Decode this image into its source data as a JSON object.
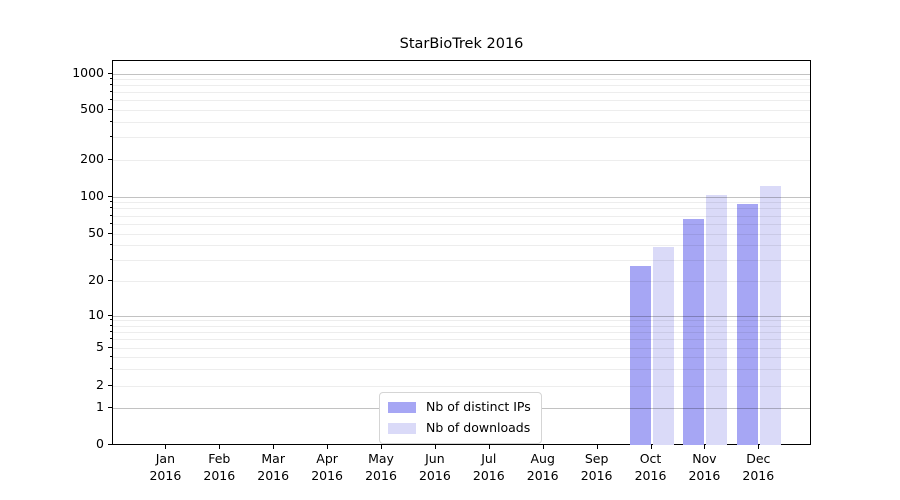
{
  "title": "StarBioTrek 2016",
  "chart_data": {
    "type": "bar",
    "title": "StarBioTrek 2016",
    "categories": [
      "Jan 2016",
      "Feb 2016",
      "Mar 2016",
      "Apr 2016",
      "May 2016",
      "Jun 2016",
      "Jul 2016",
      "Aug 2016",
      "Sep 2016",
      "Oct 2016",
      "Nov 2016",
      "Dec 2016"
    ],
    "series": [
      {
        "name": "Nb of distinct IPs",
        "color": "#a6a6f4",
        "values": [
          0,
          0,
          0,
          0,
          0,
          0,
          0,
          0,
          0,
          27,
          66,
          88
        ]
      },
      {
        "name": "Nb of downloads",
        "color": "#dadaf8",
        "values": [
          0,
          0,
          0,
          0,
          0,
          0,
          0,
          0,
          0,
          39,
          104,
          122
        ]
      }
    ],
    "xlabel": "",
    "ylabel": "",
    "yscale": "symlog",
    "ylim": [
      0,
      1300
    ],
    "y_ticks": [
      0,
      1,
      2,
      5,
      10,
      20,
      50,
      100,
      200,
      500,
      1000
    ],
    "grid": true,
    "legend_position": "lower center"
  }
}
